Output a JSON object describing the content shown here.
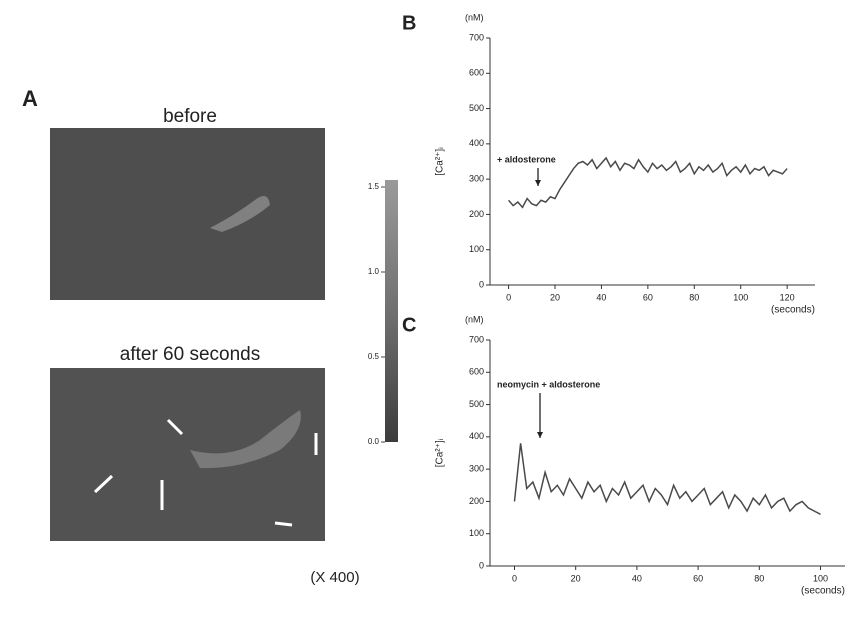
{
  "panel_a": {
    "label": "A",
    "before": "before",
    "after": "after 60 seconds",
    "magnification": "(X 400)",
    "colorbar": {
      "lim": [
        0,
        1.5
      ],
      "ticks": [
        {
          "value": 1.5,
          "label": "1.5"
        },
        {
          "value": 1.0,
          "label": "1.0"
        },
        {
          "value": 0.5,
          "label": "0.5"
        },
        {
          "value": 0.0,
          "label": "0.0"
        }
      ]
    }
  },
  "chart_data": [
    {
      "type": "line",
      "panel": "B",
      "ylabel": "[Ca²⁺]ᵢ",
      "yunit": "(nM)",
      "xlabel": "(seconds)",
      "annotation": "+ aldosterone",
      "color": "#4a4a4a",
      "xlim": [
        -8,
        132
      ],
      "xticks": [
        0,
        20,
        40,
        60,
        80,
        100,
        120
      ],
      "ylim": [
        0,
        700
      ],
      "yticks": [
        0,
        100,
        200,
        300,
        400,
        500,
        600,
        700
      ],
      "x": [
        0,
        2,
        4,
        6,
        8,
        10,
        12,
        14,
        16,
        18,
        20,
        22,
        24,
        26,
        28,
        30,
        32,
        34,
        36,
        38,
        40,
        42,
        44,
        46,
        48,
        50,
        52,
        54,
        56,
        58,
        60,
        62,
        64,
        66,
        68,
        70,
        72,
        74,
        76,
        78,
        80,
        82,
        84,
        86,
        88,
        90,
        92,
        94,
        96,
        98,
        100,
        102,
        104,
        106,
        108,
        110,
        112,
        114,
        116,
        118,
        120
      ],
      "values": [
        240,
        225,
        235,
        220,
        245,
        230,
        225,
        240,
        235,
        250,
        245,
        270,
        290,
        310,
        330,
        345,
        350,
        340,
        355,
        330,
        345,
        360,
        335,
        350,
        325,
        345,
        340,
        330,
        355,
        335,
        320,
        345,
        330,
        340,
        325,
        335,
        350,
        320,
        330,
        345,
        315,
        335,
        325,
        340,
        320,
        330,
        345,
        310,
        325,
        335,
        320,
        340,
        315,
        330,
        325,
        335,
        310,
        325,
        320,
        315,
        330
      ]
    },
    {
      "type": "line",
      "panel": "C",
      "ylabel": "[Ca²⁺]ᵢ",
      "yunit": "(nM)",
      "xlabel": "(seconds)",
      "annotation": "neomycin + aldosterone",
      "color": "#4a4a4a",
      "xlim": [
        -8,
        108
      ],
      "xticks": [
        0,
        20,
        40,
        60,
        80,
        100
      ],
      "ylim": [
        0,
        700
      ],
      "yticks": [
        0,
        100,
        200,
        300,
        400,
        500,
        600,
        700
      ],
      "x": [
        0,
        2,
        4,
        6,
        8,
        10,
        12,
        14,
        16,
        18,
        20,
        22,
        24,
        26,
        28,
        30,
        32,
        34,
        36,
        38,
        40,
        42,
        44,
        46,
        48,
        50,
        52,
        54,
        56,
        58,
        60,
        62,
        64,
        66,
        68,
        70,
        72,
        74,
        76,
        78,
        80,
        82,
        84,
        86,
        88,
        90,
        92,
        94,
        96,
        98,
        100
      ],
      "values": [
        200,
        380,
        240,
        260,
        210,
        290,
        230,
        250,
        220,
        270,
        240,
        210,
        260,
        230,
        250,
        200,
        240,
        220,
        260,
        210,
        230,
        250,
        200,
        240,
        220,
        190,
        250,
        210,
        230,
        200,
        220,
        240,
        190,
        210,
        230,
        180,
        220,
        200,
        170,
        210,
        190,
        220,
        180,
        200,
        210,
        170,
        190,
        200,
        180,
        170,
        160
      ]
    }
  ]
}
